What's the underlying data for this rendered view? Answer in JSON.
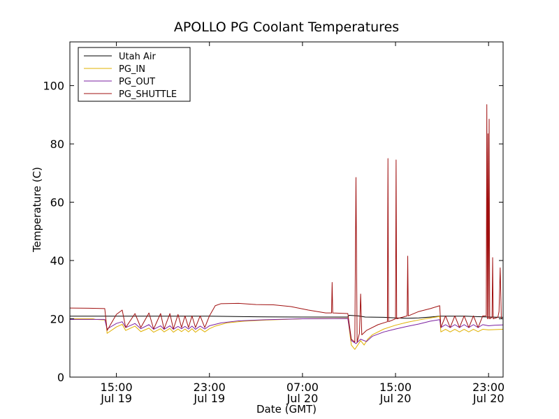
{
  "chart_data": {
    "type": "line",
    "title": "APOLLO PG Coolant Temperatures",
    "xlabel": "Date (GMT)",
    "ylabel": "Temperature (C)",
    "x_unit": "hours since Jul 19 00:00 GMT",
    "xlim": [
      11.0,
      48.25
    ],
    "ylim": [
      0,
      115
    ],
    "yticks": [
      0,
      20,
      40,
      60,
      80,
      100
    ],
    "xticks": [
      {
        "value": 15,
        "time": "15:00",
        "date": "Jul 19"
      },
      {
        "value": 23,
        "time": "23:00",
        "date": "Jul 19"
      },
      {
        "value": 31,
        "time": "07:00",
        "date": "Jul 20"
      },
      {
        "value": 39,
        "time": "15:00",
        "date": "Jul 20"
      },
      {
        "value": 47,
        "time": "23:00",
        "date": "Jul 20"
      }
    ],
    "legend_position": "upper-left",
    "series": [
      {
        "name": "Utah Air",
        "color": "#000000",
        "points": [
          [
            11.0,
            20.9
          ],
          [
            14.0,
            20.9
          ],
          [
            19.0,
            20.9
          ],
          [
            23.0,
            20.9
          ],
          [
            27.0,
            20.7
          ],
          [
            31.0,
            20.6
          ],
          [
            34.9,
            20.6
          ],
          [
            35.0,
            21.2
          ],
          [
            35.8,
            21.0
          ],
          [
            36.4,
            20.6
          ],
          [
            38.0,
            20.5
          ],
          [
            39.0,
            20.3
          ],
          [
            40.0,
            20.2
          ],
          [
            41.0,
            20.3
          ],
          [
            42.0,
            20.6
          ],
          [
            42.8,
            20.9
          ],
          [
            45.0,
            20.9
          ],
          [
            47.0,
            20.6
          ],
          [
            48.25,
            20.5
          ]
        ]
      },
      {
        "name": "PG_IN",
        "color": "#e0b000",
        "points": [
          [
            11.0,
            20.0
          ],
          [
            13.0,
            20.0
          ],
          [
            13.2,
            19.8
          ],
          [
            14.1,
            19.6
          ],
          [
            14.2,
            15.0
          ],
          [
            15.0,
            17.2
          ],
          [
            15.5,
            18.1
          ],
          [
            15.8,
            16.0
          ],
          [
            16.6,
            17.5
          ],
          [
            17.1,
            15.6
          ],
          [
            17.8,
            16.8
          ],
          [
            18.2,
            15.4
          ],
          [
            18.8,
            16.6
          ],
          [
            19.1,
            15.5
          ],
          [
            19.6,
            16.7
          ],
          [
            19.9,
            15.4
          ],
          [
            20.3,
            16.5
          ],
          [
            20.6,
            15.6
          ],
          [
            20.9,
            16.5
          ],
          [
            21.2,
            15.5
          ],
          [
            21.5,
            16.6
          ],
          [
            21.8,
            15.4
          ],
          [
            22.2,
            16.6
          ],
          [
            22.6,
            15.5
          ],
          [
            23.0,
            16.6
          ],
          [
            23.5,
            17.5
          ],
          [
            24.5,
            18.6
          ],
          [
            26.0,
            19.2
          ],
          [
            28.0,
            19.6
          ],
          [
            31.0,
            20.0
          ],
          [
            33.0,
            20.1
          ],
          [
            34.9,
            20.2
          ],
          [
            35.2,
            11.0
          ],
          [
            35.5,
            9.5
          ],
          [
            36.0,
            12.5
          ],
          [
            36.3,
            11.0
          ],
          [
            36.6,
            13.0
          ],
          [
            37.0,
            14.5
          ],
          [
            38.0,
            16.5
          ],
          [
            39.0,
            17.8
          ],
          [
            40.0,
            18.8
          ],
          [
            41.0,
            19.6
          ],
          [
            42.0,
            20.3
          ],
          [
            42.8,
            20.8
          ],
          [
            42.9,
            15.5
          ],
          [
            43.3,
            16.4
          ],
          [
            43.7,
            15.5
          ],
          [
            44.1,
            16.4
          ],
          [
            44.5,
            15.5
          ],
          [
            44.9,
            16.4
          ],
          [
            45.3,
            15.5
          ],
          [
            45.7,
            16.4
          ],
          [
            46.1,
            15.6
          ],
          [
            46.5,
            16.4
          ],
          [
            47.0,
            16.2
          ],
          [
            47.5,
            16.3
          ],
          [
            48.25,
            16.4
          ]
        ]
      },
      {
        "name": "PG_OUT",
        "color": "#7a1fa0",
        "points": [
          [
            11.0,
            19.8
          ],
          [
            14.0,
            19.8
          ],
          [
            14.2,
            16.5
          ],
          [
            15.0,
            18.4
          ],
          [
            15.5,
            19.0
          ],
          [
            15.8,
            17.0
          ],
          [
            16.6,
            18.4
          ],
          [
            17.1,
            16.6
          ],
          [
            17.8,
            18.0
          ],
          [
            18.2,
            16.4
          ],
          [
            18.8,
            17.6
          ],
          [
            19.1,
            16.4
          ],
          [
            19.6,
            17.6
          ],
          [
            19.9,
            16.4
          ],
          [
            20.3,
            17.4
          ],
          [
            20.6,
            16.6
          ],
          [
            20.9,
            17.4
          ],
          [
            21.2,
            16.5
          ],
          [
            21.5,
            17.5
          ],
          [
            21.8,
            16.4
          ],
          [
            22.2,
            17.5
          ],
          [
            22.6,
            16.5
          ],
          [
            23.0,
            17.6
          ],
          [
            24.0,
            18.6
          ],
          [
            25.5,
            19.3
          ],
          [
            28.0,
            19.7
          ],
          [
            31.0,
            20.0
          ],
          [
            34.9,
            20.1
          ],
          [
            35.2,
            12.5
          ],
          [
            35.6,
            11.5
          ],
          [
            36.0,
            13.0
          ],
          [
            36.5,
            12.2
          ],
          [
            37.0,
            14.0
          ],
          [
            38.0,
            15.5
          ],
          [
            39.0,
            16.5
          ],
          [
            40.0,
            17.4
          ],
          [
            41.0,
            18.2
          ],
          [
            42.0,
            19.2
          ],
          [
            42.8,
            19.7
          ],
          [
            42.9,
            17.0
          ],
          [
            43.3,
            18.0
          ],
          [
            43.7,
            17.0
          ],
          [
            44.1,
            18.0
          ],
          [
            44.5,
            17.0
          ],
          [
            44.9,
            18.0
          ],
          [
            45.3,
            17.0
          ],
          [
            45.7,
            18.0
          ],
          [
            46.1,
            17.0
          ],
          [
            46.5,
            18.0
          ],
          [
            47.0,
            17.6
          ],
          [
            47.5,
            17.8
          ],
          [
            48.25,
            17.9
          ]
        ]
      },
      {
        "name": "PG_SHUTTLE",
        "color": "#a01010",
        "points": [
          [
            11.0,
            23.7
          ],
          [
            13.0,
            23.6
          ],
          [
            14.0,
            23.5
          ],
          [
            14.2,
            16.0
          ],
          [
            15.0,
            21.5
          ],
          [
            15.5,
            23.0
          ],
          [
            15.8,
            17.0
          ],
          [
            16.6,
            21.8
          ],
          [
            17.1,
            17.0
          ],
          [
            17.8,
            22.0
          ],
          [
            18.2,
            16.5
          ],
          [
            18.8,
            21.8
          ],
          [
            19.1,
            16.5
          ],
          [
            19.6,
            21.8
          ],
          [
            19.9,
            16.5
          ],
          [
            20.3,
            21.5
          ],
          [
            20.6,
            17.0
          ],
          [
            20.9,
            21.0
          ],
          [
            21.2,
            17.0
          ],
          [
            21.5,
            21.0
          ],
          [
            21.8,
            17.0
          ],
          [
            22.2,
            21.0
          ],
          [
            22.6,
            17.0
          ],
          [
            23.0,
            21.0
          ],
          [
            23.5,
            24.5
          ],
          [
            24.0,
            25.2
          ],
          [
            25.5,
            25.3
          ],
          [
            27.0,
            24.9
          ],
          [
            28.5,
            24.8
          ],
          [
            30.0,
            24.2
          ],
          [
            31.5,
            23.0
          ],
          [
            33.0,
            22.0
          ],
          [
            33.5,
            22.0
          ],
          [
            33.55,
            32.5
          ],
          [
            33.6,
            22.0
          ],
          [
            34.9,
            21.8
          ],
          [
            35.2,
            13.0
          ],
          [
            35.5,
            12.0
          ],
          [
            35.6,
            68.5
          ],
          [
            35.7,
            12.0
          ],
          [
            35.9,
            15.0
          ],
          [
            36.0,
            28.5
          ],
          [
            36.1,
            14.5
          ],
          [
            36.5,
            16.0
          ],
          [
            37.5,
            18.0
          ],
          [
            38.3,
            19.0
          ],
          [
            38.35,
            75.0
          ],
          [
            38.4,
            19.0
          ],
          [
            39.0,
            20.0
          ],
          [
            39.05,
            74.5
          ],
          [
            39.1,
            20.0
          ],
          [
            40.0,
            21.0
          ],
          [
            40.05,
            41.5
          ],
          [
            40.1,
            21.0
          ],
          [
            41.0,
            22.5
          ],
          [
            42.0,
            23.5
          ],
          [
            42.8,
            24.5
          ],
          [
            42.9,
            17.0
          ],
          [
            43.3,
            21.0
          ],
          [
            43.7,
            17.0
          ],
          [
            44.1,
            21.0
          ],
          [
            44.5,
            17.0
          ],
          [
            44.9,
            21.0
          ],
          [
            45.3,
            17.0
          ],
          [
            45.7,
            21.0
          ],
          [
            46.1,
            17.0
          ],
          [
            46.5,
            21.0
          ],
          [
            46.8,
            21.0
          ],
          [
            46.85,
            93.5
          ],
          [
            46.9,
            20.0
          ],
          [
            46.95,
            83.5
          ],
          [
            47.0,
            20.0
          ],
          [
            47.05,
            88.5
          ],
          [
            47.1,
            20.0
          ],
          [
            47.3,
            20.5
          ],
          [
            47.35,
            41.0
          ],
          [
            47.4,
            20.0
          ],
          [
            47.8,
            20.5
          ],
          [
            47.9,
            22.5
          ],
          [
            48.0,
            37.5
          ],
          [
            48.1,
            20.0
          ],
          [
            48.25,
            20.0
          ]
        ]
      }
    ]
  }
}
